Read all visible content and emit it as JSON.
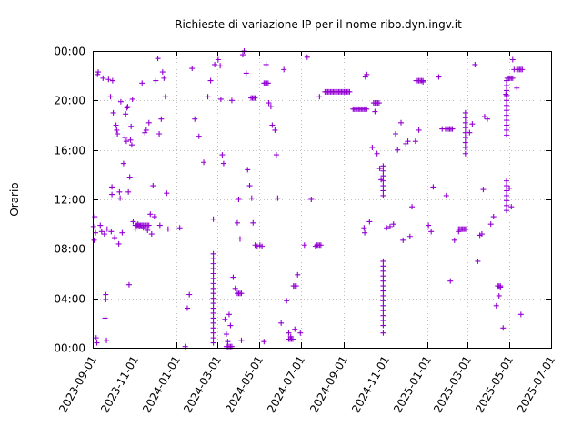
{
  "chart_data": {
    "type": "scatter",
    "title": "Richieste di variazione IP per il nome ribo.dyn.ingv.it",
    "xlabel": "",
    "ylabel": "Orario",
    "x_type": "date",
    "xlim": [
      "2023-09-01",
      "2025-07-01"
    ],
    "ylim": [
      0,
      24
    ],
    "x_ticks": [
      "2023-09-01",
      "2023-11-01",
      "2024-01-01",
      "2024-03-01",
      "2024-05-01",
      "2024-07-01",
      "2024-09-01",
      "2024-11-01",
      "2025-01-01",
      "2025-03-01",
      "2025-05-01",
      "2025-07-01"
    ],
    "y_ticks": [
      0,
      4,
      8,
      12,
      16,
      20,
      24
    ],
    "y_tick_labels": [
      "00:00",
      "04:00",
      "08:00",
      "12:00",
      "16:00",
      "20:00",
      "00:00"
    ],
    "grid": true,
    "marker": "+",
    "color": "#9400d3",
    "series": [
      {
        "points": [
          [
            "2023-09-02",
            9.8
          ],
          [
            "2023-09-03",
            8.7
          ],
          [
            "2023-09-04",
            10.6
          ],
          [
            "2023-09-05",
            9.3
          ],
          [
            "2023-09-06",
            0.8
          ],
          [
            "2023-09-07",
            0.4
          ],
          [
            "2023-09-08",
            22.1
          ],
          [
            "2023-09-09",
            22.3
          ],
          [
            "2023-09-12",
            9.9
          ],
          [
            "2023-09-14",
            9.4
          ],
          [
            "2023-09-16",
            21.8
          ],
          [
            "2023-09-18",
            9.2
          ],
          [
            "2023-09-19",
            2.4
          ],
          [
            "2023-09-20",
            3.9
          ],
          [
            "2023-09-20",
            4.3
          ],
          [
            "2023-09-21",
            0.6
          ],
          [
            "2023-09-22",
            9.6
          ],
          [
            "2023-09-24",
            21.7
          ],
          [
            "2023-09-27",
            20.3
          ],
          [
            "2023-09-28",
            9.4
          ],
          [
            "2023-09-29",
            13.0
          ],
          [
            "2023-09-29",
            12.4
          ],
          [
            "2023-09-30",
            21.6
          ],
          [
            "2023-10-01",
            19.0
          ],
          [
            "2023-10-03",
            8.9
          ],
          [
            "2023-10-05",
            18.0
          ],
          [
            "2023-10-06",
            17.6
          ],
          [
            "2023-10-07",
            17.3
          ],
          [
            "2023-10-09",
            8.4
          ],
          [
            "2023-10-10",
            12.6
          ],
          [
            "2023-10-11",
            12.1
          ],
          [
            "2023-10-12",
            19.9
          ],
          [
            "2023-10-14",
            9.3
          ],
          [
            "2023-10-16",
            14.9
          ],
          [
            "2023-10-18",
            17.0
          ],
          [
            "2023-10-19",
            18.9
          ],
          [
            "2023-10-20",
            16.7
          ],
          [
            "2023-10-21",
            19.4
          ],
          [
            "2023-10-22",
            19.5
          ],
          [
            "2023-10-23",
            12.6
          ],
          [
            "2023-10-24",
            5.1
          ],
          [
            "2023-10-25",
            13.8
          ],
          [
            "2023-10-26",
            16.8
          ],
          [
            "2023-10-27",
            17.9
          ],
          [
            "2023-10-28",
            16.4
          ],
          [
            "2023-10-29",
            20.1
          ],
          [
            "2023-10-30",
            10.2
          ],
          [
            "2023-11-02",
            9.6
          ],
          [
            "2023-11-04",
            9.9
          ],
          [
            "2023-11-06",
            10.0
          ],
          [
            "2023-11-08",
            9.8
          ],
          [
            "2023-11-10",
            9.9
          ],
          [
            "2023-11-12",
            21.4
          ],
          [
            "2023-11-14",
            9.7
          ],
          [
            "2023-11-16",
            17.4
          ],
          [
            "2023-11-18",
            17.6
          ],
          [
            "2023-11-20",
            9.5
          ],
          [
            "2023-11-22",
            18.2
          ],
          [
            "2023-11-24",
            10.8
          ],
          [
            "2023-11-26",
            9.2
          ],
          [
            "2023-11-28",
            13.1
          ],
          [
            "2023-11-30",
            10.6
          ],
          [
            "2023-12-02",
            21.6
          ],
          [
            "2023-12-05",
            23.4
          ],
          [
            "2023-12-07",
            17.3
          ],
          [
            "2023-12-08",
            9.9
          ],
          [
            "2023-12-10",
            18.5
          ],
          [
            "2023-12-12",
            22.3
          ],
          [
            "2023-12-14",
            21.8
          ],
          [
            "2023-12-16",
            20.3
          ],
          [
            "2023-12-18",
            12.5
          ],
          [
            "2023-12-20",
            9.6
          ],
          [
            "2024-01-06",
            9.7
          ],
          [
            "2024-01-14",
            0.1
          ],
          [
            "2024-01-17",
            3.2
          ],
          [
            "2024-01-20",
            4.3
          ],
          [
            "2024-01-24",
            22.6
          ],
          [
            "2024-01-28",
            18.5
          ],
          [
            "2024-02-03",
            17.1
          ],
          [
            "2024-02-10",
            15.0
          ],
          [
            "2024-02-16",
            20.3
          ],
          [
            "2024-02-20",
            21.6
          ],
          [
            "2024-02-24",
            10.4
          ],
          [
            "2024-02-26",
            22.9
          ],
          [
            "2024-03-02",
            23.3
          ],
          [
            "2024-03-05",
            22.8
          ],
          [
            "2024-03-06",
            20.1
          ],
          [
            "2024-03-08",
            15.6
          ],
          [
            "2024-03-10",
            14.9
          ],
          [
            "2024-03-12",
            2.3
          ],
          [
            "2024-03-14",
            1.1
          ],
          [
            "2024-03-16",
            0.5
          ],
          [
            "2024-03-18",
            2.7
          ],
          [
            "2024-03-20",
            1.8
          ],
          [
            "2024-03-22",
            20.0
          ],
          [
            "2024-03-24",
            5.7
          ],
          [
            "2024-03-27",
            4.8
          ],
          [
            "2024-03-30",
            10.1
          ],
          [
            "2024-04-01",
            12.0
          ],
          [
            "2024-04-03",
            8.8
          ],
          [
            "2024-04-05",
            0.6
          ],
          [
            "2024-04-07",
            23.7
          ],
          [
            "2024-04-09",
            24.0
          ],
          [
            "2024-04-12",
            22.2
          ],
          [
            "2024-04-14",
            14.4
          ],
          [
            "2024-04-17",
            13.1
          ],
          [
            "2024-04-20",
            12.1
          ],
          [
            "2024-04-22",
            10.1
          ],
          [
            "2024-04-25",
            8.3
          ],
          [
            "2024-04-28",
            8.2
          ],
          [
            "2024-05-02",
            8.3
          ],
          [
            "2024-05-05",
            8.2
          ],
          [
            "2024-05-08",
            0.5
          ],
          [
            "2024-05-11",
            22.9
          ],
          [
            "2024-05-15",
            19.8
          ],
          [
            "2024-05-18",
            19.5
          ],
          [
            "2024-05-20",
            18.0
          ],
          [
            "2024-05-24",
            17.6
          ],
          [
            "2024-05-26",
            15.6
          ],
          [
            "2024-05-28",
            12.1
          ],
          [
            "2024-06-02",
            2.0
          ],
          [
            "2024-06-06",
            22.5
          ],
          [
            "2024-06-10",
            3.8
          ],
          [
            "2024-06-13",
            1.2
          ],
          [
            "2024-06-16",
            0.9
          ],
          [
            "2024-06-22",
            1.5
          ],
          [
            "2024-06-26",
            5.9
          ],
          [
            "2024-06-30",
            1.2
          ],
          [
            "2024-07-06",
            8.3
          ],
          [
            "2024-07-10",
            23.5
          ],
          [
            "2024-07-16",
            12.0
          ],
          [
            "2024-07-22",
            8.2
          ],
          [
            "2024-07-28",
            20.3
          ],
          [
            "2024-10-01",
            9.7
          ],
          [
            "2024-10-02",
            9.3
          ],
          [
            "2024-10-03",
            21.9
          ],
          [
            "2024-10-05",
            22.1
          ],
          [
            "2024-10-09",
            10.2
          ],
          [
            "2024-10-13",
            16.2
          ],
          [
            "2024-10-17",
            19.1
          ],
          [
            "2024-10-20",
            15.7
          ],
          [
            "2024-10-24",
            14.5
          ],
          [
            "2024-10-26",
            13.6
          ],
          [
            "2024-10-29",
            1.2
          ],
          [
            "2024-11-03",
            9.7
          ],
          [
            "2024-11-08",
            9.8
          ],
          [
            "2024-11-13",
            10.0
          ],
          [
            "2024-11-16",
            17.3
          ],
          [
            "2024-11-19",
            16.0
          ],
          [
            "2024-11-24",
            18.2
          ],
          [
            "2024-11-27",
            8.7
          ],
          [
            "2024-12-01",
            16.5
          ],
          [
            "2024-12-04",
            16.7
          ],
          [
            "2024-12-07",
            9.0
          ],
          [
            "2024-12-10",
            11.4
          ],
          [
            "2024-12-15",
            16.7
          ],
          [
            "2024-12-20",
            17.6
          ],
          [
            "2024-12-26",
            21.5
          ],
          [
            "2025-01-03",
            9.9
          ],
          [
            "2025-01-07",
            9.4
          ],
          [
            "2025-01-10",
            13.0
          ],
          [
            "2025-01-18",
            21.9
          ],
          [
            "2025-01-23",
            17.7
          ],
          [
            "2025-01-29",
            12.3
          ],
          [
            "2025-02-04",
            5.4
          ],
          [
            "2025-02-10",
            8.7
          ],
          [
            "2025-02-16",
            9.4
          ],
          [
            "2025-02-22",
            9.6
          ],
          [
            "2025-02-26",
            15.7
          ],
          [
            "2025-03-04",
            17.4
          ],
          [
            "2025-03-08",
            18.1
          ],
          [
            "2025-03-12",
            22.9
          ],
          [
            "2025-03-16",
            7.0
          ],
          [
            "2025-03-19",
            9.1
          ],
          [
            "2025-03-22",
            9.2
          ],
          [
            "2025-03-24",
            12.8
          ],
          [
            "2025-03-26",
            18.7
          ],
          [
            "2025-03-30",
            18.5
          ],
          [
            "2025-04-04",
            10.0
          ],
          [
            "2025-04-08",
            10.6
          ],
          [
            "2025-04-12",
            3.4
          ],
          [
            "2025-04-16",
            4.2
          ],
          [
            "2025-04-18",
            4.9
          ],
          [
            "2025-04-22",
            1.6
          ],
          [
            "2025-04-26",
            20.5
          ],
          [
            "2025-05-01",
            12.9
          ],
          [
            "2025-05-04",
            11.4
          ],
          [
            "2025-05-06",
            23.3
          ],
          [
            "2025-05-08",
            22.5
          ],
          [
            "2025-05-12",
            21.0
          ],
          [
            "2025-05-18",
            2.7
          ]
        ],
        "vertical_runs": [
          [
            "2024-02-24",
            0.4,
            7.8
          ],
          [
            "2024-10-29",
            1.8,
            7.0
          ],
          [
            "2024-10-29",
            12.3,
            14.8
          ],
          [
            "2025-02-26",
            16.2,
            19.2
          ],
          [
            "2025-04-27",
            17.2,
            21.7
          ],
          [
            "2025-04-27",
            11.1,
            13.8
          ]
        ],
        "horizontal_runs": [
          [
            "2023-11-02",
            "2023-11-22",
            9.9
          ],
          [
            "2024-03-14",
            "2024-03-22",
            0.1
          ],
          [
            "2024-03-30",
            "2024-04-05",
            4.4
          ],
          [
            "2024-04-19",
            "2024-04-25",
            20.2
          ],
          [
            "2024-05-08",
            "2024-05-15",
            21.4
          ],
          [
            "2024-06-13",
            "2024-06-20",
            0.7
          ],
          [
            "2024-06-20",
            "2024-06-25",
            5.0
          ],
          [
            "2024-07-24",
            "2024-07-30",
            8.3
          ],
          [
            "2024-08-05",
            "2024-09-10",
            20.7
          ],
          [
            "2024-09-15",
            "2024-10-05",
            19.3
          ],
          [
            "2024-10-15",
            "2024-10-24",
            19.8
          ],
          [
            "2025-01-28",
            "2025-02-07",
            17.7
          ],
          [
            "2025-02-16",
            "2025-02-28",
            9.6
          ],
          [
            "2025-04-14",
            "2025-04-18",
            5.0
          ],
          [
            "2025-05-12",
            "2025-05-20",
            22.5
          ],
          [
            "2024-12-16",
            "2024-12-26",
            21.6
          ],
          [
            "2025-04-28",
            "2025-05-06",
            21.8
          ]
        ]
      }
    ]
  }
}
